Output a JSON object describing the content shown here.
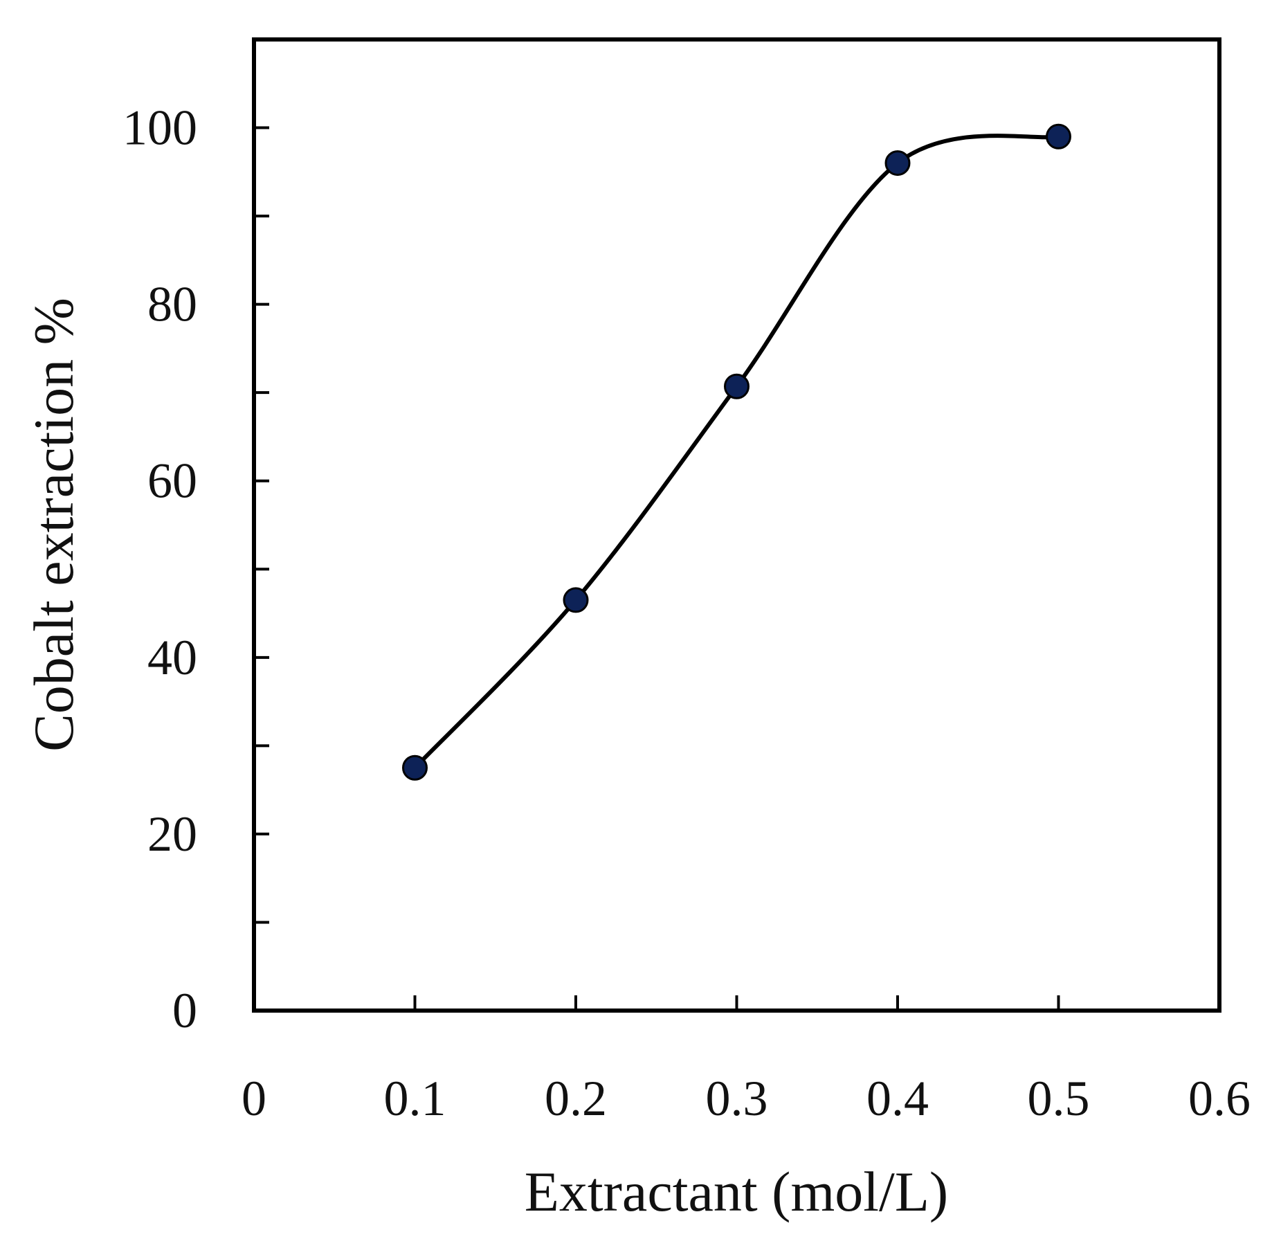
{
  "chart_data": {
    "type": "line",
    "title": "",
    "xlabel": "Extractant (mol/L)",
    "ylabel": "Cobalt extraction %",
    "xlim": [
      0,
      0.6
    ],
    "ylim": [
      0,
      110
    ],
    "x_ticks": [
      0,
      0.1,
      0.2,
      0.3,
      0.4,
      0.5,
      0.6
    ],
    "x_tick_labels": [
      "0",
      "0.1",
      "0.2",
      "0.3",
      "0.4",
      "0.5",
      "0.6"
    ],
    "y_major_ticks": [
      0,
      20,
      40,
      60,
      80,
      100
    ],
    "y_tick_labels": [
      "0",
      "20",
      "40",
      "60",
      "80",
      "100"
    ],
    "y_minor_ticks": [
      10,
      30,
      50,
      70,
      90
    ],
    "grid": false,
    "smooth": true,
    "series": [
      {
        "name": "Cobalt extraction",
        "x": [
          0.1,
          0.2,
          0.3,
          0.4,
          0.5
        ],
        "values": [
          27.5,
          46.5,
          70.7,
          96.0,
          99.0
        ],
        "marker_color": "#0d2257",
        "line_color": "#000000"
      }
    ]
  }
}
